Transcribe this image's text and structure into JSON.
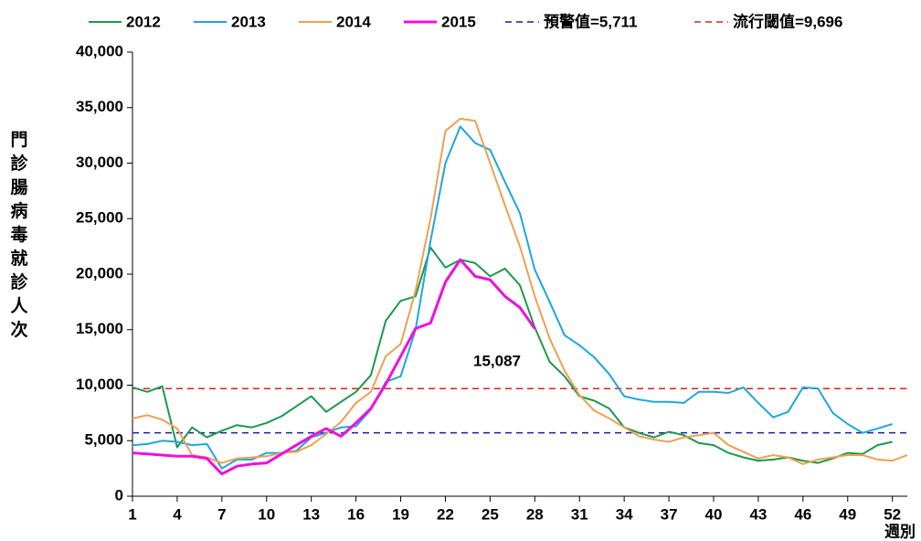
{
  "chart_data": {
    "type": "line",
    "y_label": "門診腸病毒就診人次",
    "x_label": "週別",
    "x": [
      1,
      2,
      3,
      4,
      5,
      6,
      7,
      8,
      9,
      10,
      11,
      12,
      13,
      14,
      15,
      16,
      17,
      18,
      19,
      20,
      21,
      22,
      23,
      24,
      25,
      26,
      27,
      28,
      29,
      30,
      31,
      32,
      33,
      34,
      35,
      36,
      37,
      38,
      39,
      40,
      41,
      42,
      43,
      44,
      45,
      46,
      47,
      48,
      49,
      50,
      51,
      52,
      53
    ],
    "xlim": [
      1,
      53
    ],
    "xticks": [
      1,
      4,
      7,
      10,
      13,
      16,
      19,
      22,
      25,
      28,
      31,
      34,
      37,
      40,
      43,
      46,
      49,
      52
    ],
    "ylim": [
      0,
      40000
    ],
    "yticks": [
      0,
      {
        "value": 5000,
        "label": "5,000"
      },
      {
        "value": 10000,
        "label": "10,000"
      },
      {
        "value": 15000,
        "label": "15,000"
      },
      {
        "value": 20000,
        "label": "20,000"
      },
      {
        "value": 25000,
        "label": "25,000"
      },
      {
        "value": 30000,
        "label": "30,000"
      },
      {
        "value": 35000,
        "label": "35,000"
      },
      {
        "value": 40000,
        "label": "40,000"
      }
    ],
    "grid": false,
    "series": [
      {
        "name": "2012",
        "color": "#1a9a4a",
        "values": [
          9800,
          9400,
          9900,
          4400,
          6200,
          5300,
          5900,
          6400,
          6200,
          6600,
          7200,
          8100,
          9000,
          7600,
          8500,
          9400,
          10900,
          15800,
          17600,
          18000,
          22400,
          20600,
          21300,
          21000,
          19800,
          20500,
          19000,
          15200,
          12100,
          10800,
          9000,
          8600,
          7900,
          6200,
          5700,
          5300,
          5800,
          5500,
          4800,
          4600,
          3900,
          3500,
          3200,
          3300,
          3500,
          3200,
          3000,
          3400,
          3900,
          3800,
          4600,
          4900,
          null
        ]
      },
      {
        "name": "2013",
        "color": "#1ea6e0",
        "values": [
          4600,
          4700,
          5000,
          4900,
          4600,
          4700,
          2500,
          3300,
          3300,
          3900,
          3900,
          4100,
          5300,
          5700,
          6200,
          6300,
          7800,
          10300,
          10800,
          15000,
          23000,
          30000,
          33300,
          31800,
          31200,
          28300,
          25500,
          20400,
          17500,
          14500,
          13600,
          12500,
          11000,
          9000,
          8700,
          8500,
          8500,
          8400,
          9400,
          9400,
          9300,
          9800,
          8400,
          7100,
          7600,
          9800,
          9700,
          7500,
          6500,
          5700,
          6100,
          6500,
          null
        ]
      },
      {
        "name": "2014",
        "color": "#f0a050",
        "values": [
          7000,
          7300,
          6900,
          6100,
          3700,
          3500,
          3000,
          3400,
          3500,
          3600,
          3900,
          4000,
          4600,
          5600,
          6700,
          8400,
          9400,
          12600,
          13700,
          18500,
          25000,
          32900,
          34000,
          33800,
          30000,
          26200,
          22500,
          18000,
          14200,
          11300,
          9100,
          7700,
          7000,
          6200,
          5400,
          5100,
          4900,
          5300,
          5500,
          5700,
          4600,
          4000,
          3400,
          3700,
          3500,
          2900,
          3300,
          3500,
          3700,
          3700,
          3300,
          3200,
          3700
        ]
      },
      {
        "name": "2015",
        "color": "#ee10dd",
        "values": [
          3900,
          3800,
          3700,
          3600,
          3600,
          3400,
          2000,
          2700,
          2900,
          3000,
          3800,
          4600,
          5400,
          6100,
          5400,
          6600,
          7900,
          10100,
          12600,
          15100,
          15600,
          19300,
          21300,
          19800,
          19500,
          18000,
          17000,
          15087,
          null,
          null,
          null,
          null,
          null,
          null,
          null,
          null,
          null,
          null,
          null,
          null,
          null,
          null,
          null,
          null,
          null,
          null,
          null,
          null,
          null,
          null,
          null,
          null,
          null
        ]
      }
    ],
    "reference_lines": [
      {
        "label": "預警值=5,711",
        "value": 5711,
        "color": "#1a1aa8"
      },
      {
        "label": "流行閾值=9,696",
        "value": 9696,
        "color": "#e02020"
      }
    ],
    "annotation": {
      "text": "15,087",
      "color": "#ee10dd"
    }
  }
}
